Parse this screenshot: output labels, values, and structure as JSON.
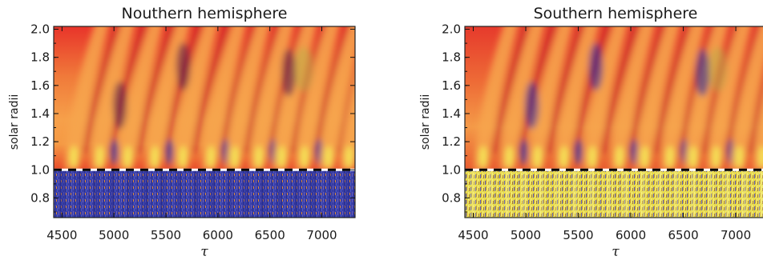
{
  "chart_data": [
    {
      "type": "heatmap",
      "title": "Nouthern hemisphere",
      "xlabel": "τ",
      "ylabel": "solar radii",
      "xlim": [
        4420,
        7320
      ],
      "ylim": [
        0.66,
        2.02
      ],
      "xticks": [
        4500,
        5000,
        5500,
        6000,
        6500,
        7000
      ],
      "yticks": [
        "0.8",
        "1.0",
        "1.2",
        "1.4",
        "1.6",
        "1.8",
        "2.0"
      ],
      "reference_line": {
        "y": 1.0,
        "style": "black-white dashed"
      },
      "below_reference_color": "blue",
      "hot_spot_x": [
        4600,
        4850,
        5120,
        5380,
        5650,
        5920,
        6150,
        6380,
        6600,
        6820,
        7050,
        7250
      ]
    },
    {
      "type": "heatmap",
      "title": "Southern hemisphere",
      "xlabel": "τ",
      "ylabel": "solar radii",
      "xlim": [
        4420,
        7320
      ],
      "ylim": [
        0.66,
        2.02
      ],
      "xticks": [
        4500,
        5000,
        5500,
        6000,
        6500,
        7000
      ],
      "yticks": [
        "0.8",
        "1.0",
        "1.2",
        "1.4",
        "1.6",
        "1.8",
        "2.0"
      ],
      "reference_line": {
        "y": 1.0,
        "style": "black-white dashed"
      },
      "below_reference_color": "yellow",
      "hot_spot_x": [
        4580,
        4830,
        5100,
        5350,
        5620,
        5880,
        6120,
        6360,
        6580,
        6800,
        7020,
        7240
      ]
    }
  ]
}
